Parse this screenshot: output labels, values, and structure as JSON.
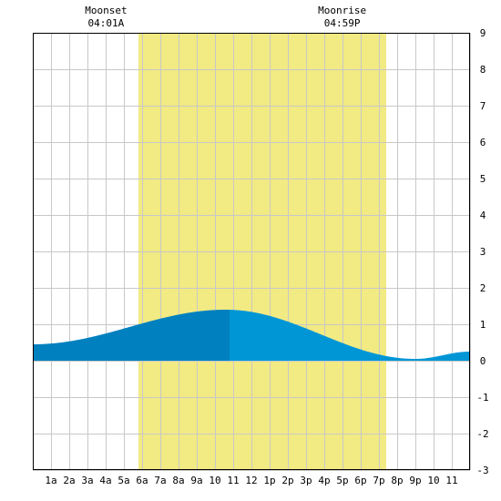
{
  "chart_data": {
    "type": "area",
    "x_unit": "hour of day",
    "xlim": [
      0,
      24
    ],
    "ylim": [
      -3,
      9
    ],
    "grid": true,
    "x_tick_labels": [
      "1a",
      "2a",
      "3a",
      "4a",
      "5a",
      "6a",
      "7a",
      "8a",
      "9a",
      "10",
      "11",
      "12",
      "1p",
      "2p",
      "3p",
      "4p",
      "5p",
      "6p",
      "7p",
      "8p",
      "9p",
      "10",
      "11"
    ],
    "y_tick_labels": [
      "-3",
      "-2",
      "-1",
      "0",
      "1",
      "2",
      "3",
      "4",
      "5",
      "6",
      "7",
      "8",
      "9"
    ],
    "daylight_band": {
      "start_hour": 5.8,
      "end_hour": 19.4,
      "color": "#f2ea83"
    },
    "moon_events": [
      {
        "name": "Moonset",
        "time": "04:01A",
        "hour": 4.02
      },
      {
        "name": "Moonrise",
        "time": "04:59P",
        "hour": 16.98
      }
    ],
    "tide_extremes": [
      {
        "hour": 0,
        "height": 0.45
      },
      {
        "hour": 10.6,
        "height": 1.4
      },
      {
        "hour": 21.0,
        "height": 0.05
      },
      {
        "hour": 24,
        "height": 0.25
      }
    ],
    "split_hour": 10.8,
    "colors": {
      "tide_before": "#0080bf",
      "tide_after": "#0096d6",
      "grid": "#c8c8c8",
      "axis": "#000000"
    }
  }
}
